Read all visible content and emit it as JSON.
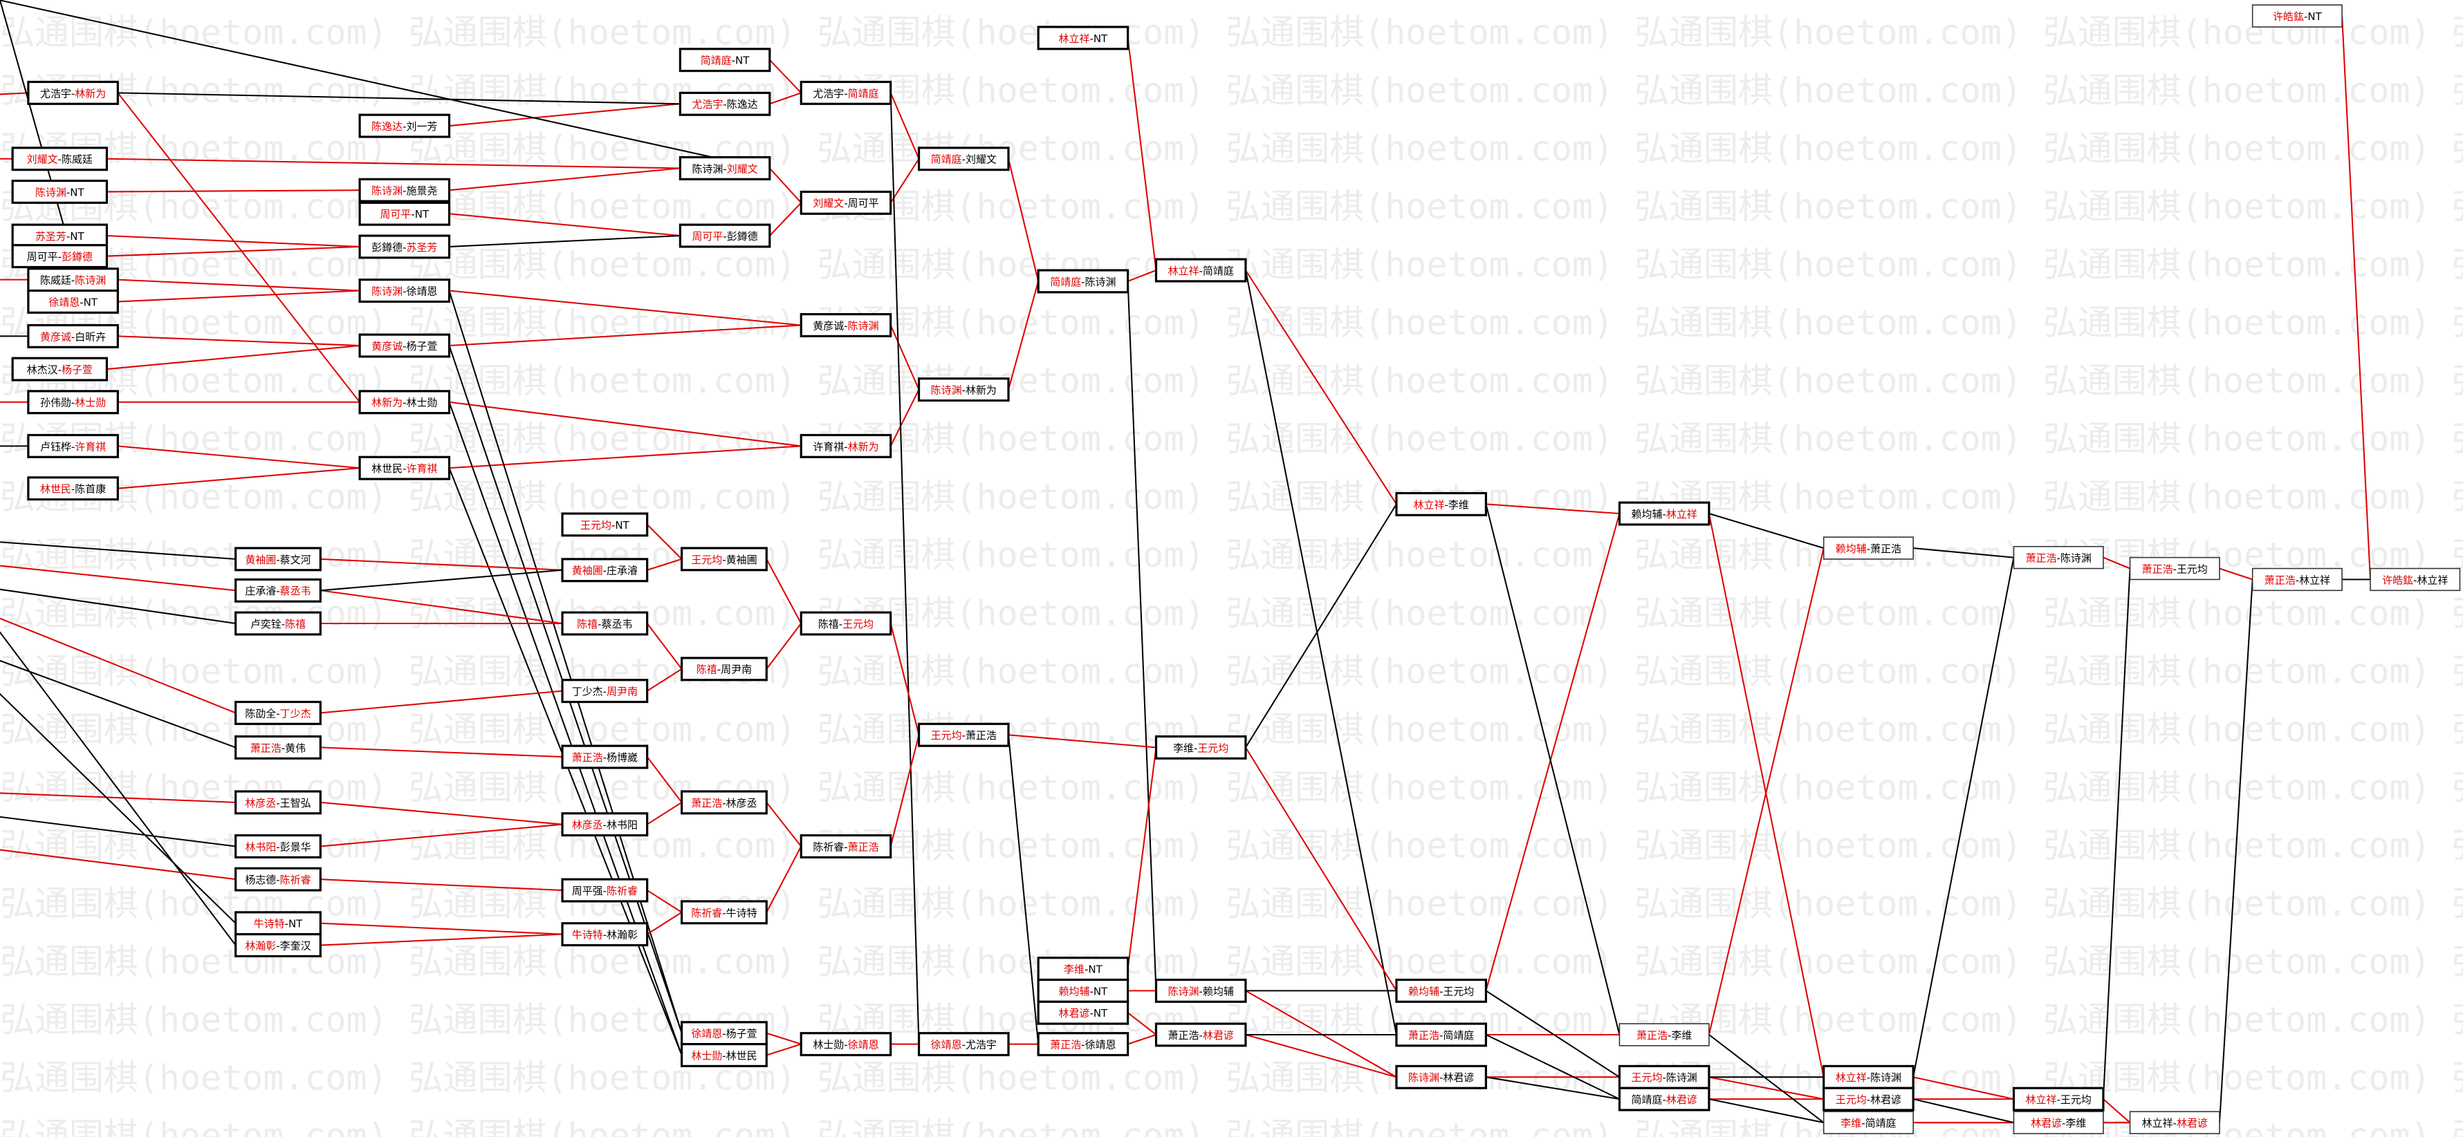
{
  "watermark": "弘通围棋(hoetom.com)",
  "sep": "-",
  "colors": {
    "winner": "#e00000",
    "loser": "#000000",
    "win_line": "#e00000",
    "lose_line": "#000000"
  },
  "nodes": [
    {
      "left": "尤浩宇",
      "right": "林新为",
      "winner": 1
    },
    {
      "left": "刘耀文",
      "right": "陈威廷",
      "winner": 0
    },
    {
      "left": "陈诗渊",
      "right": "NT",
      "winner": 0
    },
    {
      "left": "苏圣芳",
      "right": "NT",
      "winner": 0
    },
    {
      "left": "周可平",
      "right": "彭鐏德",
      "winner": 1
    },
    {
      "left": "陈威廷",
      "right": "陈诗渊",
      "winner": 1
    },
    {
      "left": "徐靖恩",
      "right": "NT",
      "winner": 0
    },
    {
      "left": "黄彦诚",
      "right": "白昕卉",
      "winner": 0
    },
    {
      "left": "林杰汉",
      "right": "杨子萱",
      "winner": 1
    },
    {
      "left": "孙伟勋",
      "right": "林士勋",
      "winner": 1
    },
    {
      "left": "卢钰桦",
      "right": "许育祺",
      "winner": 1
    },
    {
      "left": "林世民",
      "right": "陈首康",
      "winner": 0
    },
    {
      "left": "陈逸达",
      "right": "刘一芳",
      "winner": 0
    },
    {
      "left": "陈诗渊",
      "right": "施景尧",
      "winner": 0
    },
    {
      "left": "周可平",
      "right": "NT",
      "winner": 0
    },
    {
      "left": "彭鐏德",
      "right": "苏圣芳",
      "winner": 1
    },
    {
      "left": "陈诗渊",
      "right": "徐靖恩",
      "winner": 0
    },
    {
      "left": "黄彦诚",
      "right": "杨子萱",
      "winner": 0
    },
    {
      "left": "林新为",
      "right": "林士勋",
      "winner": 0
    },
    {
      "left": "林世民",
      "right": "许育祺",
      "winner": 1
    },
    {
      "left": "简靖庭",
      "right": "NT",
      "winner": 0
    },
    {
      "left": "尤浩宇",
      "right": "陈逸达",
      "winner": 0
    },
    {
      "left": "陈诗渊",
      "right": "刘耀文",
      "winner": 1
    },
    {
      "left": "周可平",
      "right": "彭鐏德",
      "winner": 0
    },
    {
      "left": "尤浩宇",
      "right": "简靖庭",
      "winner": 1
    },
    {
      "left": "刘耀文",
      "right": "周可平",
      "winner": 0
    },
    {
      "left": "黄彦诚",
      "right": "陈诗渊",
      "winner": 1
    },
    {
      "left": "许育祺",
      "right": "林新为",
      "winner": 1
    },
    {
      "left": "简靖庭",
      "right": "刘耀文",
      "winner": 0
    },
    {
      "left": "陈诗渊",
      "right": "林新为",
      "winner": 0
    },
    {
      "left": "黄袖圃",
      "right": "蔡文河",
      "winner": 0
    },
    {
      "left": "庄承濬",
      "right": "蔡丞韦",
      "winner": 1
    },
    {
      "left": "卢奕铨",
      "right": "陈禧",
      "winner": 1
    },
    {
      "left": "陈劭全",
      "right": "丁少杰",
      "winner": 1
    },
    {
      "left": "萧正浩",
      "right": "黄伟",
      "winner": 0
    },
    {
      "left": "林彦丞",
      "right": "王智弘",
      "winner": 0
    },
    {
      "left": "林书阳",
      "right": "彭景华",
      "winner": 0
    },
    {
      "left": "杨志德",
      "right": "陈祈睿",
      "winner": 1
    },
    {
      "left": "牛诗特",
      "right": "NT",
      "winner": 0
    },
    {
      "left": "林瀚彰",
      "right": "李奎汉",
      "winner": 0
    },
    {
      "left": "王元均",
      "right": "NT",
      "winner": 0
    },
    {
      "left": "黄袖圃",
      "right": "庄承濬",
      "winner": 0
    },
    {
      "left": "陈禧",
      "right": "蔡丞韦",
      "winner": 0
    },
    {
      "left": "丁少杰",
      "right": "周尹南",
      "winner": 1
    },
    {
      "left": "萧正浩",
      "right": "杨博崴",
      "winner": 0
    },
    {
      "left": "林彦丞",
      "right": "林书阳",
      "winner": 0
    },
    {
      "left": "周平强",
      "right": "陈祈睿",
      "winner": 1
    },
    {
      "left": "牛诗特",
      "right": "林瀚彰",
      "winner": 0
    },
    {
      "left": "王元均",
      "right": "黄袖圃",
      "winner": 0
    },
    {
      "left": "陈禧",
      "right": "周尹南",
      "winner": 0
    },
    {
      "left": "萧正浩",
      "right": "林彦丞",
      "winner": 0
    },
    {
      "left": "陈祈睿",
      "right": "牛诗特",
      "winner": 0
    },
    {
      "left": "徐靖恩",
      "right": "杨子萱",
      "winner": 0
    },
    {
      "left": "林士勋",
      "right": "林世民",
      "winner": 0
    },
    {
      "left": "陈禧",
      "right": "王元均",
      "winner": 1
    },
    {
      "left": "陈祈睿",
      "right": "萧正浩",
      "winner": 1
    },
    {
      "left": "林士勋",
      "right": "徐靖恩",
      "winner": 1
    },
    {
      "left": "王元均",
      "right": "萧正浩",
      "winner": 0
    },
    {
      "left": "徐靖恩",
      "right": "尤浩宇",
      "winner": 0
    },
    {
      "left": "林立祥",
      "right": "NT",
      "winner": 0
    },
    {
      "left": "简靖庭",
      "right": "陈诗渊",
      "winner": 0
    },
    {
      "left": "李维",
      "right": "NT",
      "winner": 0
    },
    {
      "left": "赖均辅",
      "right": "NT",
      "winner": 0
    },
    {
      "left": "林君谚",
      "right": "NT",
      "winner": 0
    },
    {
      "left": "萧正浩",
      "right": "徐靖恩",
      "winner": 0
    },
    {
      "left": "林立祥",
      "right": "简靖庭",
      "winner": 0
    },
    {
      "left": "李维",
      "right": "王元均",
      "winner": 1
    },
    {
      "left": "陈诗渊",
      "right": "赖均辅",
      "winner": 0
    },
    {
      "left": "萧正浩",
      "right": "林君谚",
      "winner": 1
    },
    {
      "left": "林立祥",
      "right": "李维",
      "winner": 0
    },
    {
      "left": "赖均辅",
      "right": "王元均",
      "winner": 0
    },
    {
      "left": "萧正浩",
      "right": "简靖庭",
      "winner": 0
    },
    {
      "left": "陈诗渊",
      "right": "林君谚",
      "winner": 0
    },
    {
      "left": "赖均辅",
      "right": "林立祥",
      "winner": 1
    },
    {
      "left": "萧正浩",
      "right": "李维",
      "winner": 0
    },
    {
      "left": "王元均",
      "right": "陈诗渊",
      "winner": 0
    },
    {
      "left": "简靖庭",
      "right": "林君谚",
      "winner": 1
    },
    {
      "left": "赖均辅",
      "right": "萧正浩",
      "winner": 0
    },
    {
      "left": "林立祥",
      "right": "陈诗渊",
      "winner": 0
    },
    {
      "left": "王元均",
      "right": "林君谚",
      "winner": 0
    },
    {
      "left": "李维",
      "right": "简靖庭",
      "winner": 0
    },
    {
      "left": "萧正浩",
      "right": "陈诗渊",
      "winner": 0
    },
    {
      "left": "林立祥",
      "right": "王元均",
      "winner": 0
    },
    {
      "left": "林君谚",
      "right": "李维",
      "winner": 0
    },
    {
      "left": "萧正浩",
      "right": "王元均",
      "winner": 0
    },
    {
      "left": "林立祥",
      "right": "林君谚",
      "winner": 1
    },
    {
      "left": "萧正浩",
      "right": "林立祥",
      "winner": 0
    },
    {
      "left": "许皓鈜",
      "right": "NT",
      "winner": 0
    },
    {
      "left": "许皓鈜",
      "right": "林立祥",
      "winner": 0
    }
  ]
}
